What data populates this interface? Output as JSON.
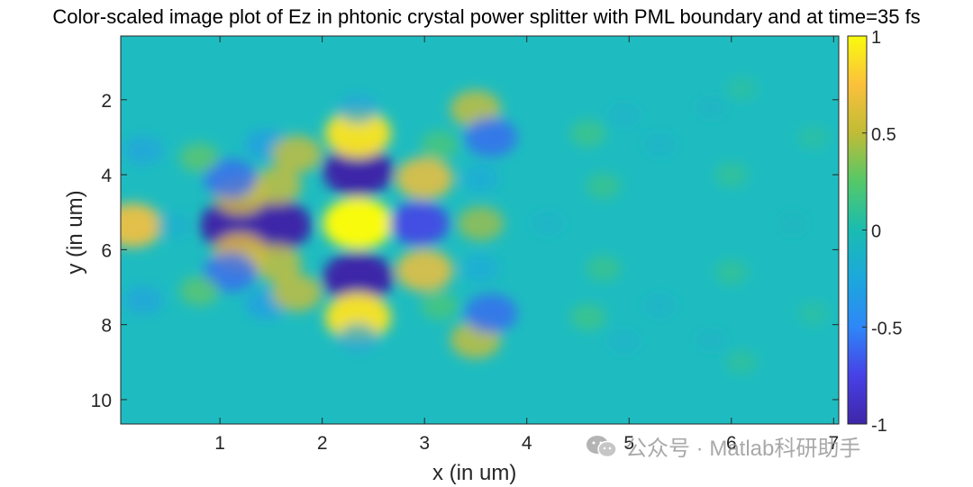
{
  "chart_data": {
    "type": "heatmap",
    "title": "Color-scaled image plot of Ez in phtonic crystal power splitter with PML boundary and at time=35 fs",
    "xlabel": "x (in um)",
    "ylabel": "y (in um)",
    "xlim": [
      0.03,
      7.05
    ],
    "ylim": [
      10.65,
      0.3
    ],
    "x_ticks": [
      1,
      2,
      3,
      4,
      5,
      6,
      7
    ],
    "y_ticks": [
      2,
      4,
      6,
      8,
      10
    ],
    "y_reversed": true,
    "colormap": "parula",
    "colorbar": {
      "ticks": [
        1,
        0.5,
        0,
        -0.5,
        -1
      ],
      "range": [
        -1,
        1
      ]
    },
    "field_features": [
      {
        "x": 0.15,
        "y": 5.35,
        "value": 0.75
      },
      {
        "x": 0.55,
        "y": 5.35,
        "value": -0.2
      },
      {
        "x": 1.15,
        "y": 5.35,
        "value": -1.0
      },
      {
        "x": 1.55,
        "y": 5.35,
        "value": -1.0
      },
      {
        "x": 1.2,
        "y": 4.55,
        "value": 0.6
      },
      {
        "x": 1.2,
        "y": 6.1,
        "value": 0.65
      },
      {
        "x": 1.55,
        "y": 4.3,
        "value": 0.55
      },
      {
        "x": 1.55,
        "y": 6.35,
        "value": 0.55
      },
      {
        "x": 1.1,
        "y": 4.1,
        "value": -0.6
      },
      {
        "x": 1.1,
        "y": 6.6,
        "value": -0.6
      },
      {
        "x": 0.8,
        "y": 3.55,
        "value": 0.3
      },
      {
        "x": 0.8,
        "y": 7.1,
        "value": 0.3
      },
      {
        "x": 1.45,
        "y": 3.2,
        "value": -0.35
      },
      {
        "x": 1.45,
        "y": 7.45,
        "value": -0.35
      },
      {
        "x": 1.75,
        "y": 3.45,
        "value": 0.55
      },
      {
        "x": 1.75,
        "y": 7.15,
        "value": 0.55
      },
      {
        "x": 0.25,
        "y": 3.35,
        "value": -0.3
      },
      {
        "x": 0.25,
        "y": 7.35,
        "value": -0.3
      },
      {
        "x": 2.35,
        "y": 5.3,
        "value": 1.0
      },
      {
        "x": 2.35,
        "y": 3.9,
        "value": -1.0
      },
      {
        "x": 2.35,
        "y": 6.75,
        "value": -1.0
      },
      {
        "x": 2.35,
        "y": 2.9,
        "value": 0.9
      },
      {
        "x": 2.35,
        "y": 7.8,
        "value": 0.9
      },
      {
        "x": 2.35,
        "y": 2.25,
        "value": -0.3
      },
      {
        "x": 2.35,
        "y": 8.35,
        "value": -0.3
      },
      {
        "x": 3.0,
        "y": 4.1,
        "value": 0.7
      },
      {
        "x": 3.0,
        "y": 6.55,
        "value": 0.7
      },
      {
        "x": 2.95,
        "y": 5.3,
        "value": -0.75
      },
      {
        "x": 3.5,
        "y": 2.25,
        "value": 0.55
      },
      {
        "x": 3.5,
        "y": 8.4,
        "value": 0.55
      },
      {
        "x": 3.65,
        "y": 3.0,
        "value": -0.6
      },
      {
        "x": 3.65,
        "y": 7.7,
        "value": -0.6
      },
      {
        "x": 3.55,
        "y": 5.3,
        "value": 0.45
      },
      {
        "x": 3.55,
        "y": 4.1,
        "value": -0.25
      },
      {
        "x": 3.55,
        "y": 6.5,
        "value": -0.25
      },
      {
        "x": 3.15,
        "y": 3.2,
        "value": 0.25
      },
      {
        "x": 3.15,
        "y": 7.5,
        "value": 0.25
      },
      {
        "x": 4.6,
        "y": 2.9,
        "value": 0.2
      },
      {
        "x": 4.6,
        "y": 7.8,
        "value": 0.2
      },
      {
        "x": 4.2,
        "y": 5.3,
        "value": -0.15
      },
      {
        "x": 4.75,
        "y": 4.3,
        "value": 0.18
      },
      {
        "x": 4.75,
        "y": 6.5,
        "value": 0.18
      },
      {
        "x": 4.95,
        "y": 2.4,
        "value": -0.15
      },
      {
        "x": 4.95,
        "y": 8.45,
        "value": -0.15
      },
      {
        "x": 5.3,
        "y": 3.2,
        "value": -0.15
      },
      {
        "x": 5.3,
        "y": 7.5,
        "value": -0.15
      },
      {
        "x": 6.0,
        "y": 4.0,
        "value": 0.15
      },
      {
        "x": 6.0,
        "y": 6.6,
        "value": 0.15
      },
      {
        "x": 5.8,
        "y": 2.2,
        "value": -0.12
      },
      {
        "x": 5.8,
        "y": 8.4,
        "value": -0.12
      },
      {
        "x": 6.1,
        "y": 9.0,
        "value": 0.12
      },
      {
        "x": 6.1,
        "y": 1.7,
        "value": 0.1
      },
      {
        "x": 6.6,
        "y": 5.3,
        "value": -0.1
      },
      {
        "x": 6.8,
        "y": 3.0,
        "value": 0.1
      },
      {
        "x": 6.8,
        "y": 7.7,
        "value": 0.1
      }
    ]
  },
  "watermark": {
    "text": "公众号 · Matlab科研助手"
  }
}
